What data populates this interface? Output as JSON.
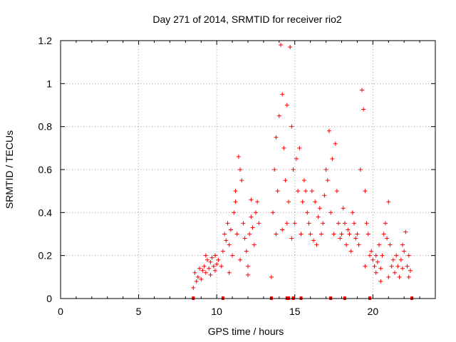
{
  "chart_data": {
    "type": "scatter",
    "title": "Day 271 of 2014, SRMTID for receiver rio2",
    "xlabel": "GPS time / hours",
    "ylabel": "SRMTID / TECUs",
    "xlim": [
      0,
      24
    ],
    "ylim": [
      0,
      1.2
    ],
    "xticks": [
      0,
      5,
      10,
      15,
      20
    ],
    "xtick_labels": [
      "0",
      "5",
      "10",
      "15",
      "20"
    ],
    "yticks": [
      0,
      0.2,
      0.4,
      0.6,
      0.8,
      1.0,
      1.2
    ],
    "ytick_labels": [
      "0",
      "0.2",
      "0.4",
      "0.6",
      "0.8",
      "1",
      "1.2"
    ],
    "grid": true,
    "marker": "+",
    "series": [
      {
        "name": "SRMTID",
        "color": "#ff0000",
        "points": [
          [
            8.5,
            0.05
          ],
          [
            8.6,
            0.12
          ],
          [
            8.7,
            0.08
          ],
          [
            8.8,
            0.1
          ],
          [
            8.9,
            0.14
          ],
          [
            9.0,
            0.09
          ],
          [
            9.1,
            0.13
          ],
          [
            9.2,
            0.15
          ],
          [
            9.3,
            0.12
          ],
          [
            9.4,
            0.18
          ],
          [
            9.5,
            0.14
          ],
          [
            9.6,
            0.17
          ],
          [
            9.7,
            0.19
          ],
          [
            9.8,
            0.15
          ],
          [
            9.9,
            0.2
          ],
          [
            10.0,
            0.16
          ],
          [
            10.1,
            0.18
          ],
          [
            9.3,
            0.2
          ],
          [
            9.6,
            0.11
          ],
          [
            9.9,
            0.13
          ],
          [
            10.3,
            0.15
          ],
          [
            10.4,
            0.22
          ],
          [
            10.5,
            0.3
          ],
          [
            10.6,
            0.27
          ],
          [
            10.7,
            0.35
          ],
          [
            10.8,
            0.25
          ],
          [
            10.9,
            0.32
          ],
          [
            11.0,
            0.2
          ],
          [
            11.1,
            0.4
          ],
          [
            11.2,
            0.45
          ],
          [
            11.3,
            0.3
          ],
          [
            11.4,
            0.66
          ],
          [
            11.5,
            0.6
          ],
          [
            11.6,
            0.55
          ],
          [
            11.7,
            0.35
          ],
          [
            11.8,
            0.28
          ],
          [
            11.9,
            0.22
          ],
          [
            12.0,
            0.15
          ],
          [
            12.1,
            0.3
          ],
          [
            12.2,
            0.38
          ],
          [
            12.3,
            0.33
          ],
          [
            12.4,
            0.25
          ],
          [
            12.5,
            0.4
          ],
          [
            12.6,
            0.45
          ],
          [
            12.7,
            0.35
          ],
          [
            12.2,
            0.46
          ],
          [
            11.5,
            0.18
          ],
          [
            10.8,
            0.12
          ],
          [
            12.0,
            0.11
          ],
          [
            11.2,
            0.5
          ],
          [
            13.5,
            0.1
          ],
          [
            13.6,
            0.4
          ],
          [
            13.7,
            0.6
          ],
          [
            13.8,
            0.75
          ],
          [
            13.9,
            0.5
          ],
          [
            14.0,
            0.85
          ],
          [
            14.1,
            1.18
          ],
          [
            14.2,
            0.95
          ],
          [
            14.3,
            0.7
          ],
          [
            14.4,
            0.55
          ],
          [
            14.5,
            0.9
          ],
          [
            14.6,
            0.45
          ],
          [
            14.7,
            1.17
          ],
          [
            14.8,
            0.8
          ],
          [
            14.9,
            0.6
          ],
          [
            15.0,
            0.35
          ],
          [
            15.1,
            0.65
          ],
          [
            15.2,
            0.5
          ],
          [
            15.3,
            0.7
          ],
          [
            15.4,
            0.3
          ],
          [
            14.2,
            0.32
          ],
          [
            14.8,
            0.28
          ],
          [
            13.8,
            0.3
          ],
          [
            14.5,
            0.35
          ],
          [
            15.5,
            0.45
          ],
          [
            15.6,
            0.55
          ],
          [
            15.7,
            0.5
          ],
          [
            15.8,
            0.4
          ],
          [
            15.9,
            0.35
          ],
          [
            16.0,
            0.3
          ],
          [
            16.1,
            0.5
          ],
          [
            16.2,
            0.27
          ],
          [
            16.3,
            0.45
          ],
          [
            16.4,
            0.25
          ],
          [
            16.5,
            0.38
          ],
          [
            16.6,
            0.42
          ],
          [
            16.7,
            0.3
          ],
          [
            16.8,
            0.35
          ],
          [
            16.9,
            0.48
          ],
          [
            17.0,
            0.6
          ],
          [
            17.1,
            0.55
          ],
          [
            17.2,
            0.78
          ],
          [
            17.3,
            0.4
          ],
          [
            17.4,
            0.65
          ],
          [
            17.5,
            0.3
          ],
          [
            17.6,
            0.72
          ],
          [
            17.7,
            0.5
          ],
          [
            17.8,
            0.35
          ],
          [
            17.9,
            0.28
          ],
          [
            18.0,
            0.3
          ],
          [
            18.1,
            0.42
          ],
          [
            18.2,
            0.35
          ],
          [
            18.3,
            0.25
          ],
          [
            18.4,
            0.32
          ],
          [
            18.5,
            0.3
          ],
          [
            18.6,
            0.22
          ],
          [
            18.7,
            0.4
          ],
          [
            18.8,
            0.35
          ],
          [
            18.9,
            0.28
          ],
          [
            19.0,
            0.3
          ],
          [
            19.1,
            0.25
          ],
          [
            19.2,
            0.6
          ],
          [
            19.3,
            0.97
          ],
          [
            19.4,
            0.88
          ],
          [
            19.5,
            0.5
          ],
          [
            19.6,
            0.35
          ],
          [
            19.7,
            0.3
          ],
          [
            19.8,
            0.2
          ],
          [
            19.9,
            0.22
          ],
          [
            20.0,
            0.18
          ],
          [
            20.1,
            0.15
          ],
          [
            20.2,
            0.2
          ],
          [
            20.3,
            0.17
          ],
          [
            20.4,
            0.25
          ],
          [
            20.5,
            0.14
          ],
          [
            20.6,
            0.2
          ],
          [
            20.7,
            0.3
          ],
          [
            20.8,
            0.35
          ],
          [
            20.9,
            0.28
          ],
          [
            21.0,
            0.45
          ],
          [
            21.1,
            0.25
          ],
          [
            21.2,
            0.15
          ],
          [
            21.3,
            0.18
          ],
          [
            21.4,
            0.12
          ],
          [
            21.5,
            0.2
          ],
          [
            21.6,
            0.15
          ],
          [
            21.7,
            0.1
          ],
          [
            21.8,
            0.18
          ],
          [
            21.9,
            0.14
          ],
          [
            22.0,
            0.22
          ],
          [
            22.1,
            0.31
          ],
          [
            22.2,
            0.15
          ],
          [
            22.3,
            0.2
          ],
          [
            22.4,
            0.13
          ],
          [
            20.2,
            0.12
          ],
          [
            21.0,
            0.1
          ],
          [
            21.9,
            0.25
          ],
          [
            20.5,
            0.08
          ],
          [
            19.5,
            0.15
          ],
          [
            22.3,
            0.1
          ]
        ]
      }
    ],
    "rug_x": [
      8.5,
      10.4,
      13.5,
      14.5,
      14.6,
      14.9,
      15.4,
      17.3,
      18.2,
      19.8,
      22.5
    ]
  }
}
